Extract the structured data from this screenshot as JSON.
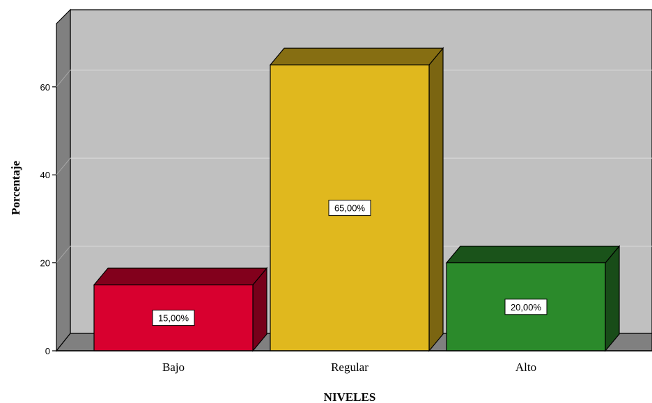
{
  "chart_data": {
    "type": "bar",
    "style": "3d",
    "title": "",
    "xlabel": "NIVELES",
    "ylabel": "Porcentaje",
    "categories": [
      "Bajo",
      "Regular",
      "Alto"
    ],
    "values": [
      15,
      65,
      20
    ],
    "data_labels": [
      "15,00%",
      "65,00%",
      "20,00%"
    ],
    "colors": [
      "#d8002f",
      "#e0b81e",
      "#2b8a2b"
    ],
    "y_ticks": [
      0,
      20,
      40,
      60
    ],
    "ylim": [
      0,
      70
    ],
    "grid": true,
    "legend": "none"
  }
}
